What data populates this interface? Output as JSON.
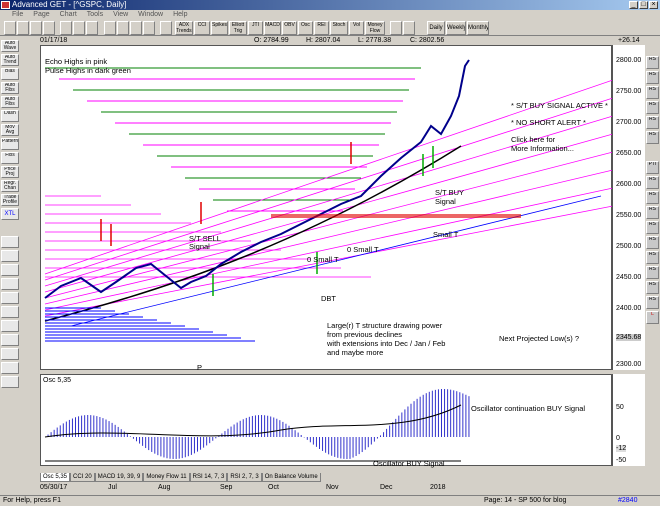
{
  "window": {
    "title": "Advanced GET - [^GSPC, Daily]"
  },
  "menu": [
    "File",
    "Page",
    "Chart",
    "Tools",
    "View",
    "Window",
    "Help"
  ],
  "toolbar": {
    "buttons": [
      "ADX Trends",
      "CCI",
      "Spikes",
      "Elliott Trig",
      "JTI",
      "MACD",
      "OBV",
      "Osc",
      "REI",
      "Stoch",
      "Vol",
      "Money Flow",
      "Daily",
      "Weekly",
      "Monthly"
    ]
  },
  "left_tools": [
    "Auto Wave",
    "Auto Trend",
    "Bias",
    "Auto Fibs",
    "Auto Fibs",
    "Dash",
    "Mov Avg",
    "Pattern",
    "Fibs",
    "Price Proj",
    "Regr. Chan",
    "Trade Profile",
    "XTL"
  ],
  "right_tools": [
    "RS",
    "RS",
    "RS",
    "RS",
    "RS",
    "RS",
    "PTI",
    "RS",
    "RS",
    "RS",
    "RS",
    "RS",
    "RS",
    "RS",
    "RS",
    "RS",
    "L"
  ],
  "info": {
    "date": "01/17/18",
    "open": "O: 2784.99",
    "high": "H: 2807.04",
    "low": "L: 2778.38",
    "close": "C: 2802.56",
    "change": "+26.14"
  },
  "annotations": {
    "echo": "Echo Highs in pink",
    "pulse": "Pulse Highs in dark green",
    "buy_active": "* S/T BUY SIGNAL ACTIVE *",
    "no_short": "* NO SHORT ALERT *",
    "click1": "Click here for",
    "click2": "More Information...",
    "st_sell1": "S/T SELL",
    "st_sell2": "Signal",
    "st_buy1": "S/T BUY",
    "st_buy2": "Signal",
    "small_t1": "0  Small T",
    "small_t2": "0  Small T",
    "small_t3": "Small T",
    "dbt": "DBT",
    "large1": "Large(r) T structure drawing power",
    "large2": "from previous declines",
    "large3": "with extensions into Dec / Jan / Feb",
    "large4": "and maybe more",
    "next_low": "Next Projected Low(s) ?",
    "p_label": "P",
    "osc_label": "Osc 5,35",
    "osc_cont": "Oscillator continuation BUY Signal",
    "osc_buy": "Oscillator BUY Signal"
  },
  "price_axis": [
    "2800.00",
    "2750.00",
    "2700.00",
    "2650.00",
    "2600.00",
    "2550.00",
    "2500.00",
    "2450.00",
    "2400.00",
    "2345.68",
    "2300.00"
  ],
  "osc_axis": {
    "top": "50",
    "mid": "0",
    "val": "-12",
    "bot": "-50"
  },
  "tabs": [
    "Osc 5,35",
    "CCI 20",
    "MACD 19, 39, 9",
    "Money Flow 11",
    "RSI 14, 7, 3",
    "RSI 2, 7, 3",
    "On Balance Volume"
  ],
  "dates": [
    "05/30/17",
    "Jul",
    "Aug",
    "Sep",
    "Oct",
    "Nov",
    "Dec",
    "2018"
  ],
  "status": {
    "help": "For Help, press F1",
    "page": "Page: 14 - SP 500 for blog",
    "id": "#2840"
  },
  "colors": {
    "pink": "#ff00ff",
    "green": "#008000",
    "red": "#e00000",
    "blue": "#0000ff"
  }
}
